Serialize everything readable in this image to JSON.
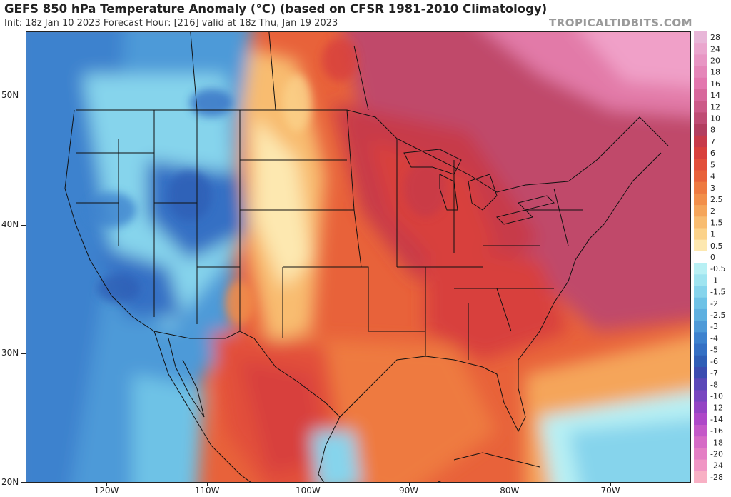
{
  "header": {
    "title": "GEFS 850 hPa Temperature Anomaly (°C) (based on CFSR 1981-2010 Climatology)",
    "subtitle": "Init: 18z Jan 10 2023   Forecast Hour: [216]   valid at 18z Thu, Jan 19 2023",
    "brand": "TROPICALTIDBITS.COM"
  },
  "map": {
    "lon_range": [
      -128,
      -62
    ],
    "lat_range": [
      20,
      55
    ],
    "lat_labels": [
      "50N",
      "40N",
      "30N",
      "20N"
    ],
    "lon_labels": [
      "120W",
      "110W",
      "100W",
      "90W",
      "80W",
      "70W"
    ],
    "regions": [
      {
        "name": "west-coast-cold",
        "anomaly": -3
      },
      {
        "name": "rockies-cold",
        "anomaly": -4
      },
      {
        "name": "plains-warm",
        "anomaly": 3
      },
      {
        "name": "great-lakes-warm",
        "anomaly": 7
      },
      {
        "name": "eastern-canada-warm",
        "anomaly": 14
      },
      {
        "name": "southeast-warm",
        "anomaly": 6
      },
      {
        "name": "atlantic-cool",
        "anomaly": -1
      }
    ]
  },
  "colorbar": {
    "labels": [
      "28",
      "24",
      "20",
      "18",
      "16",
      "14",
      "12",
      "10",
      "8",
      "7",
      "6",
      "5",
      "4",
      "3",
      "2.5",
      "2",
      "1.5",
      "1",
      "0.5",
      "0",
      "-0.5",
      "-1",
      "-1.5",
      "-2",
      "-2.5",
      "-3",
      "-4",
      "-5",
      "-6",
      "-7",
      "-8",
      "-10",
      "-12",
      "-14",
      "-16",
      "-18",
      "-20",
      "-24",
      "-28"
    ],
    "colors": [
      "#e8b6d8",
      "#eaa6ce",
      "#e896c4",
      "#e586b9",
      "#e376ae",
      "#d8689c",
      "#cc5a88",
      "#bf4c74",
      "#b23e60",
      "#c73a4a",
      "#d8403c",
      "#e24f3a",
      "#e8623a",
      "#ee7a40",
      "#f28f4a",
      "#f5a55a",
      "#f8bc70",
      "#fbd28a",
      "#fde8b0",
      "#ffffff",
      "#b8f0f4",
      "#9fe4f0",
      "#86d4ec",
      "#6ec2e6",
      "#5eb0e0",
      "#4e9ad8",
      "#3d82ce",
      "#3470c4",
      "#2e5eb6",
      "#3a4cb0",
      "#5a48b8",
      "#7846c0",
      "#9444c4",
      "#ae48c8",
      "#c458c8",
      "#d66ac6",
      "#e47ec4",
      "#f096c4",
      "#f8b0c4"
    ]
  }
}
